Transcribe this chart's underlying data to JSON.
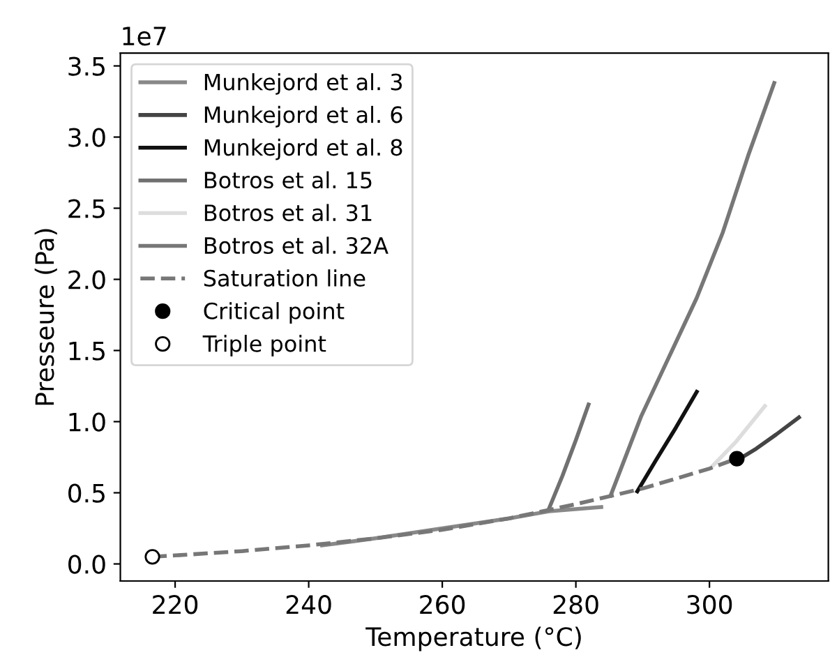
{
  "chart_data": {
    "type": "line",
    "xlabel": "Temperature (°C)",
    "ylabel": "Presseure (Pa)",
    "annotations": [
      "1e7"
    ],
    "xlim": [
      211.8,
      317.8
    ],
    "xticks": [
      220,
      240,
      260,
      280,
      300
    ],
    "ylim": [
      -0.12,
      3.59
    ],
    "yticks": [
      {
        "value": 0,
        "label": "0.0"
      },
      0.5,
      {
        "value": 1,
        "label": "1.0"
      },
      1.5,
      {
        "value": 2,
        "label": "2.0"
      },
      2.5,
      {
        "value": 3,
        "label": "3.0"
      },
      3.5
    ],
    "grid": false,
    "legend": "top left",
    "marker": "none",
    "series": [
      {
        "name": "Munkejord et al. 3",
        "color": "#888888",
        "x": [
          242,
          250,
          260,
          270,
          276,
          283.8
        ],
        "values": [
          0.13,
          0.18,
          0.25,
          0.32,
          0.37,
          0.4
        ]
      },
      {
        "name": "Munkejord et al. 6",
        "color": "#444444",
        "x": [
          304.2,
          307,
          310,
          313.4
        ],
        "values": [
          0.73,
          0.81,
          0.91,
          1.03
        ]
      },
      {
        "name": "Munkejord et al. 8",
        "color": "#111111",
        "x": [
          289.2,
          292,
          295,
          298.1
        ],
        "values": [
          0.51,
          0.73,
          0.96,
          1.21
        ]
      },
      {
        "name": "Botros et al. 15",
        "color": "#707070",
        "x": [
          275.9,
          278,
          280,
          281.9
        ],
        "values": [
          0.38,
          0.62,
          0.87,
          1.12
        ]
      },
      {
        "name": "Botros et al. 31",
        "color": "#dddddd",
        "x": [
          300.5,
          304,
          308.3
        ],
        "values": [
          0.69,
          0.86,
          1.11
        ]
      },
      {
        "name": "Botros et al. 32A",
        "color": "#777777",
        "x": [
          285.2,
          289.8,
          294,
          298.1,
          302,
          305.8,
          309.7
        ],
        "values": [
          0.48,
          1.04,
          1.46,
          1.87,
          2.33,
          2.87,
          3.38
        ]
      },
      {
        "name": "Saturation line",
        "color": "#777777",
        "line_style": "dashed",
        "x": [
          216.6,
          220,
          230,
          240,
          250,
          260,
          270,
          280,
          290,
          300,
          304.1
        ],
        "values": [
          0.05,
          0.06,
          0.09,
          0.13,
          0.18,
          0.24,
          0.32,
          0.42,
          0.53,
          0.67,
          0.74
        ]
      },
      {
        "name": "Critical point",
        "type": "scatter",
        "marker": "circle",
        "color": "#000000",
        "x": [
          304.1
        ],
        "values": [
          0.74
        ]
      },
      {
        "name": "Triple point",
        "type": "scatter",
        "marker": "circle",
        "color": "#ffffff",
        "x": [
          216.6
        ],
        "values": [
          0.05
        ]
      }
    ]
  }
}
